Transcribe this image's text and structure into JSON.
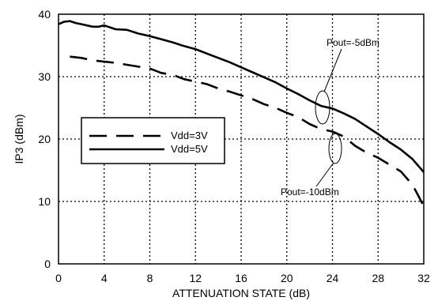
{
  "chart_data": {
    "type": "line",
    "xlabel": "ATTENUATION STATE (dB)",
    "ylabel": "IP3 (dBm)",
    "xlim": [
      0,
      32
    ],
    "ylim": [
      0,
      40
    ],
    "x_ticks": [
      0,
      4,
      8,
      12,
      16,
      20,
      24,
      28,
      32
    ],
    "y_ticks": [
      0,
      10,
      20,
      30,
      40
    ],
    "grid": true,
    "legend_position": "center-left",
    "series": [
      {
        "name": "Vdd=3V",
        "style": "dashed",
        "x": [
          1,
          2,
          3,
          4,
          5,
          6,
          7,
          8,
          9,
          10,
          11,
          12,
          13,
          14,
          15,
          16,
          17,
          18,
          19,
          20,
          21,
          22,
          23,
          24,
          25,
          26,
          27,
          28,
          29,
          30,
          31,
          31.5,
          32
        ],
        "y": [
          33.2,
          33,
          32.6,
          32.4,
          32.2,
          31.9,
          31.6,
          31.3,
          30.6,
          30.3,
          29.6,
          29.2,
          28.8,
          28.1,
          27.6,
          27,
          26.4,
          25.6,
          25,
          24.2,
          23.5,
          22.4,
          21.6,
          21.2,
          20.4,
          18.9,
          17.8,
          17,
          15.9,
          14.8,
          12.7,
          11,
          9.2
        ]
      },
      {
        "name": "Vdd=5V",
        "style": "solid",
        "x": [
          0,
          0.5,
          1,
          1.5,
          2,
          3,
          3.5,
          4,
          5,
          6,
          7,
          8,
          9,
          10,
          11,
          12,
          13,
          14,
          15,
          16,
          17,
          18,
          19,
          20,
          21,
          22,
          23,
          24,
          25,
          26,
          27,
          28,
          29,
          30,
          31,
          32
        ],
        "y": [
          38.4,
          38.8,
          38.9,
          38.6,
          38.4,
          38,
          38,
          38.2,
          37.6,
          37.5,
          36.9,
          36.5,
          36,
          35.5,
          34.9,
          34.4,
          33.7,
          33,
          32.3,
          31.5,
          30.7,
          29.9,
          29.1,
          28.1,
          27.2,
          26.2,
          25.3,
          24.9,
          24.1,
          23.2,
          22,
          20.8,
          19.5,
          18.3,
          16.8,
          14.7
        ]
      }
    ],
    "annotations": [
      {
        "text": "Pout=-5dBm",
        "x": 23.5,
        "y": 27.5
      },
      {
        "text": "Pout=-10dBm",
        "x": 24,
        "y": 21
      }
    ]
  },
  "colors": {
    "line": "#000000",
    "grid": "#000000",
    "background": "#ffffff"
  }
}
